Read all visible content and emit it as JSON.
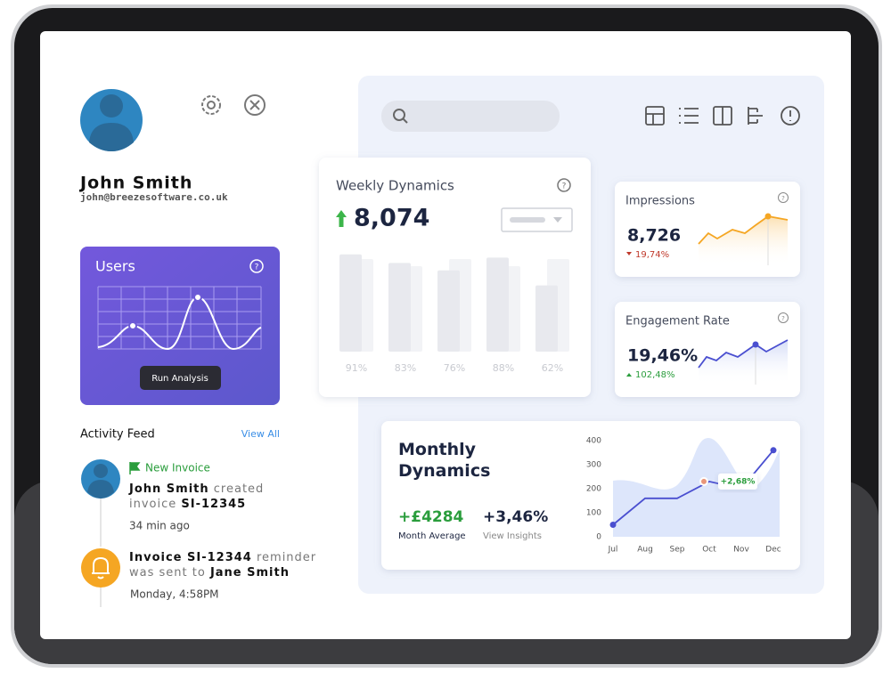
{
  "profile": {
    "name": "John Smith",
    "email": "john@breezesoftware.co.uk"
  },
  "users_card": {
    "title": "Users",
    "button": "Run Analysis"
  },
  "activity_feed": {
    "title": "Activity Feed",
    "link": "View All",
    "items": [
      {
        "tag": "New Invoice",
        "actor": "John Smith",
        "action": "created",
        "object_prefix": "invoice",
        "object": "SI-12345",
        "time": "34  min ago"
      },
      {
        "object": "Invoice SI-12344",
        "action": "reminder",
        "object_prefix": "was sent to",
        "actor": "Jane Smith",
        "time": "Monday, 4:58PM"
      }
    ]
  },
  "weekly": {
    "title": "Weekly Dynamics",
    "value": "8,074",
    "values": [
      91,
      83,
      76,
      88,
      62
    ],
    "value_labels": [
      "91%",
      "83%",
      "76%",
      "88%",
      "62%"
    ]
  },
  "impressions": {
    "title": "Impressions",
    "value": "8,726",
    "change": "19,74%"
  },
  "engagement": {
    "title": "Engagement Rate",
    "value": "19,46%",
    "change": "102,48%"
  },
  "monthly": {
    "title": "Monthly Dynamics",
    "stats": [
      {
        "value": "+£4284",
        "label": "Month Average"
      },
      {
        "value": "+3,46%",
        "label": "View Insights"
      }
    ],
    "chart": {
      "type": "line",
      "categories": [
        "Jul",
        "Aug",
        "Sep",
        "Oct",
        "Nov",
        "Dec"
      ],
      "values": [
        50,
        160,
        160,
        230,
        200,
        360
      ],
      "ylim": [
        0,
        400
      ],
      "yticks": [
        0,
        100,
        200,
        300,
        400
      ],
      "color": "#4a4fd0",
      "annotation": "+2,68%"
    }
  }
}
